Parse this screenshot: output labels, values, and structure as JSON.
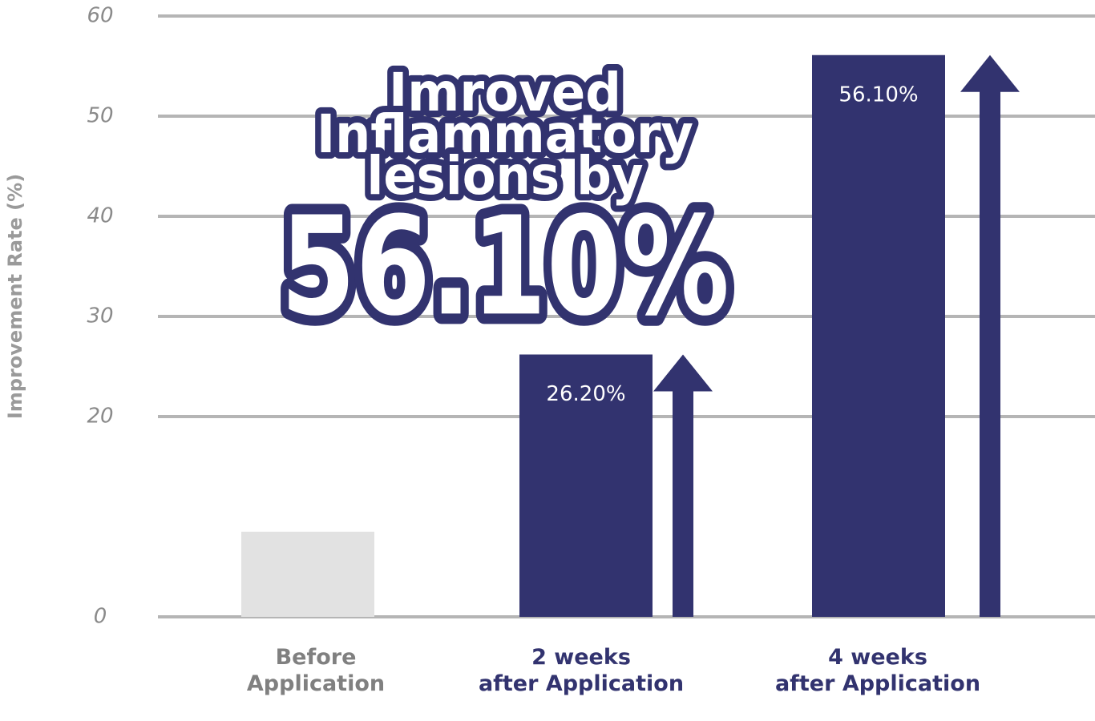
{
  "chart_data": {
    "type": "bar",
    "y_label": "Improvement Rate (%)",
    "annotation_lines": [
      "Imroved",
      "Inflammatory",
      "lesions by"
    ],
    "annotation_value": "56.10%",
    "categories": [
      "Before\nApplication",
      "2 weeks\nafter Application",
      "4 weeks\nafter Application"
    ],
    "category_colors": [
      "#808080",
      "#32336f",
      "#32336f"
    ],
    "values": [
      8.5,
      26.2,
      56.1
    ],
    "value_labels": [
      null,
      "26.20%",
      "56.10%"
    ],
    "colors": [
      "#e2e2e2",
      "#32336f",
      "#32336f"
    ],
    "ylim": [
      0,
      60
    ],
    "yticks": [
      0,
      20,
      30,
      40,
      50,
      60
    ],
    "grid": true
  }
}
